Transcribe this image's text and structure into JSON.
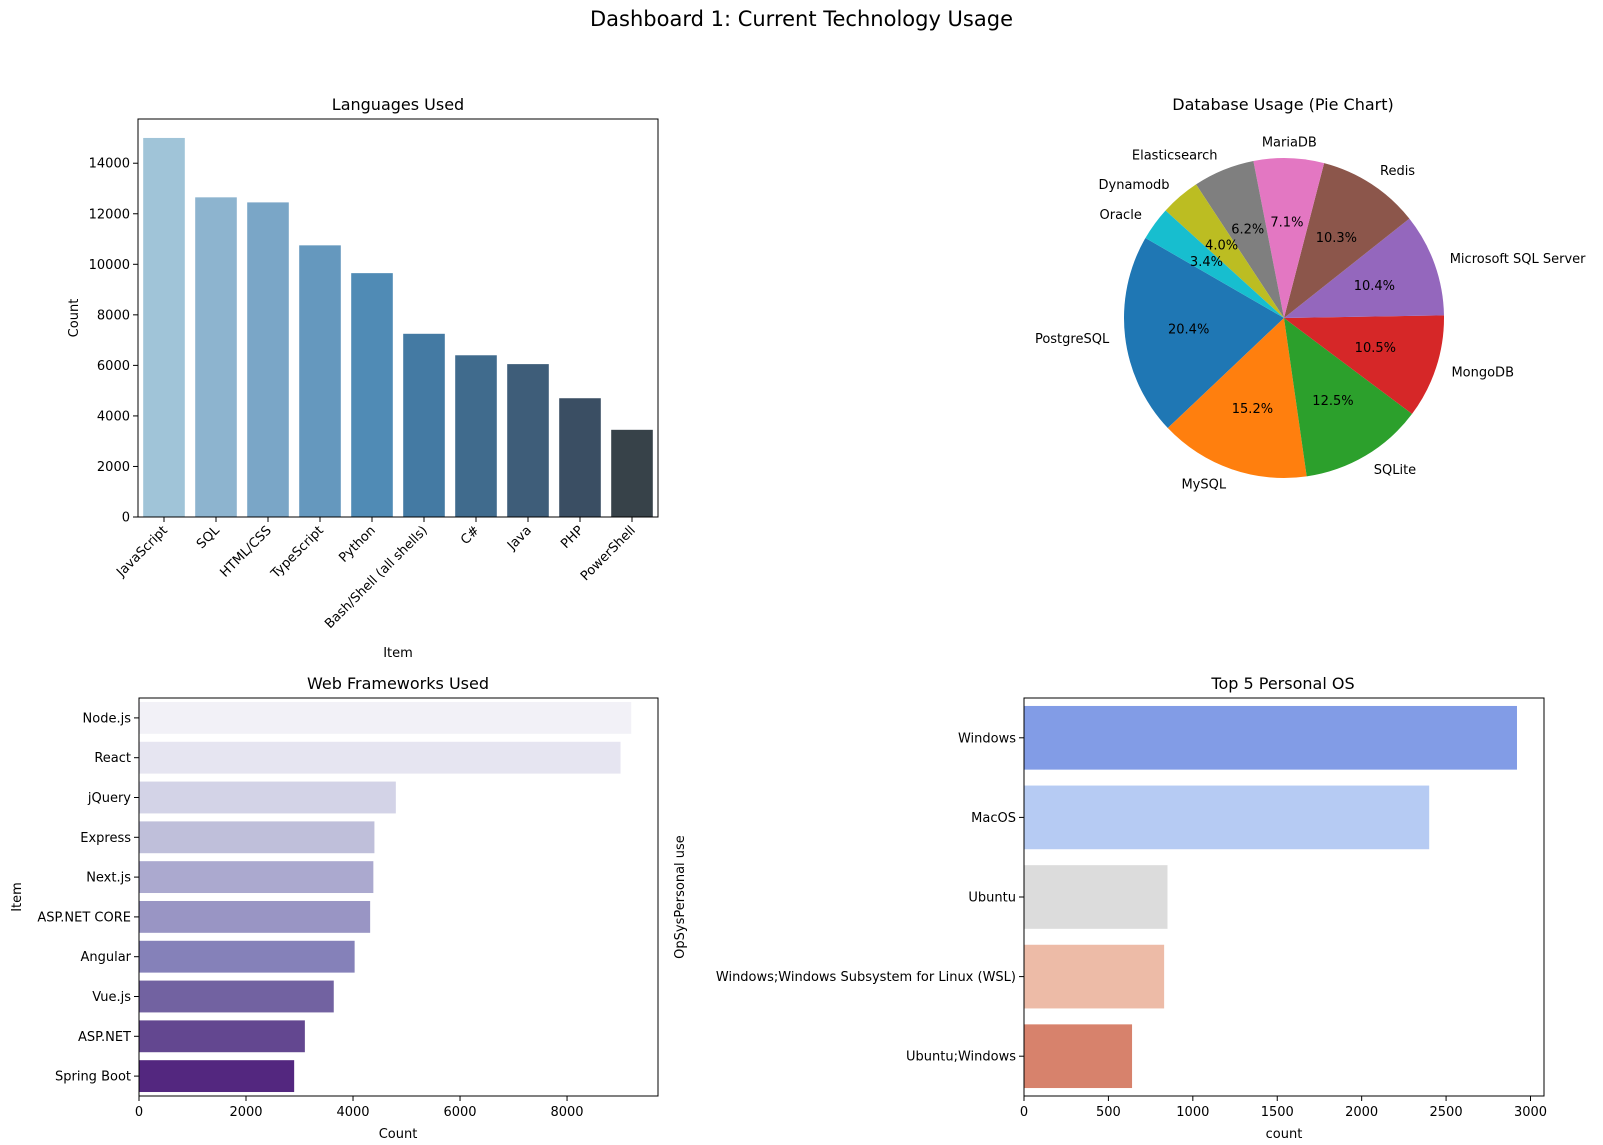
{
  "suptitle": "Dashboard 1: Current Technology Usage",
  "chart_data": [
    {
      "type": "bar",
      "orientation": "vertical",
      "title": "Languages Used",
      "xlabel": "Item",
      "ylabel": "Count",
      "categories": [
        "JavaScript",
        "SQL",
        "HTML/CSS",
        "TypeScript",
        "Python",
        "Bash/Shell (all shells)",
        "C#",
        "Java",
        "PHP",
        "PowerShell"
      ],
      "values": [
        15000,
        12650,
        12450,
        10750,
        9650,
        7250,
        6400,
        6050,
        4700,
        3450
      ],
      "yticks": [
        0,
        2000,
        4000,
        6000,
        8000,
        10000,
        12000,
        14000
      ],
      "ylim": [
        0,
        15750
      ],
      "colors": [
        "#a0c4d8",
        "#8db4cf",
        "#7aa6c7",
        "#6598be",
        "#508bb5",
        "#447aa3",
        "#406b8d",
        "#3e5d79",
        "#3a4e63",
        "#374249"
      ],
      "grid": false
    },
    {
      "type": "pie",
      "title": "Database Usage (Pie Chart)",
      "labels": [
        "PostgreSQL",
        "MySQL",
        "SQLite",
        "MongoDB",
        "Microsoft SQL Server",
        "Redis",
        "MariaDB",
        "Elasticsearch",
        "Dynamodb",
        "Oracle"
      ],
      "values": [
        20.4,
        15.2,
        12.5,
        10.5,
        10.4,
        10.3,
        7.1,
        6.2,
        4.0,
        3.4
      ],
      "value_labels": [
        "20.4%",
        "15.2%",
        "12.5%",
        "10.5%",
        "10.4%",
        "10.3%",
        "7.1%",
        "6.2%",
        "4.0%",
        "3.4%"
      ],
      "colors": [
        "#1f77b4",
        "#ff7f0e",
        "#2ca02c",
        "#d62728",
        "#9467bd",
        "#8c564b",
        "#e377c2",
        "#7f7f7f",
        "#bcbd22",
        "#17becf"
      ],
      "start_angle": 150,
      "direction": "counterclockwise"
    },
    {
      "type": "bar",
      "orientation": "horizontal",
      "title": "Web Frameworks Used",
      "xlabel": "Count",
      "ylabel": "Item",
      "categories": [
        "Node.js",
        "React",
        "jQuery",
        "Express",
        "Next.js",
        "ASP.NET CORE",
        "Angular",
        "Vue.js",
        "ASP.NET",
        "Spring Boot"
      ],
      "values": [
        9200,
        9000,
        4800,
        4400,
        4380,
        4320,
        4030,
        3640,
        3100,
        2900
      ],
      "xticks": [
        0,
        2000,
        4000,
        6000,
        8000
      ],
      "xlim": [
        0,
        9700
      ],
      "colors": [
        "#f2f1f7",
        "#e6e5f1",
        "#d3d3e7",
        "#bfbfda",
        "#aba9cf",
        "#9995c4",
        "#8581b9",
        "#7262a1",
        "#634790",
        "#53277f"
      ],
      "grid": false
    },
    {
      "type": "bar",
      "orientation": "horizontal",
      "title": "Top 5 Personal OS",
      "xlabel": "count",
      "ylabel": "OpSysPersonal use",
      "categories": [
        "Windows",
        "MacOS",
        "Ubuntu",
        "Windows;Windows Subsystem for Linux (WSL)",
        "Ubuntu;Windows"
      ],
      "values": [
        2920,
        2400,
        850,
        830,
        640
      ],
      "xticks": [
        0,
        500,
        1000,
        1500,
        2000,
        2500,
        3000
      ],
      "xlim": [
        0,
        3080
      ],
      "colors": [
        "#829ce6",
        "#b6cbf3",
        "#dcdcdc",
        "#edbba7",
        "#d7826c"
      ],
      "grid": false
    }
  ]
}
